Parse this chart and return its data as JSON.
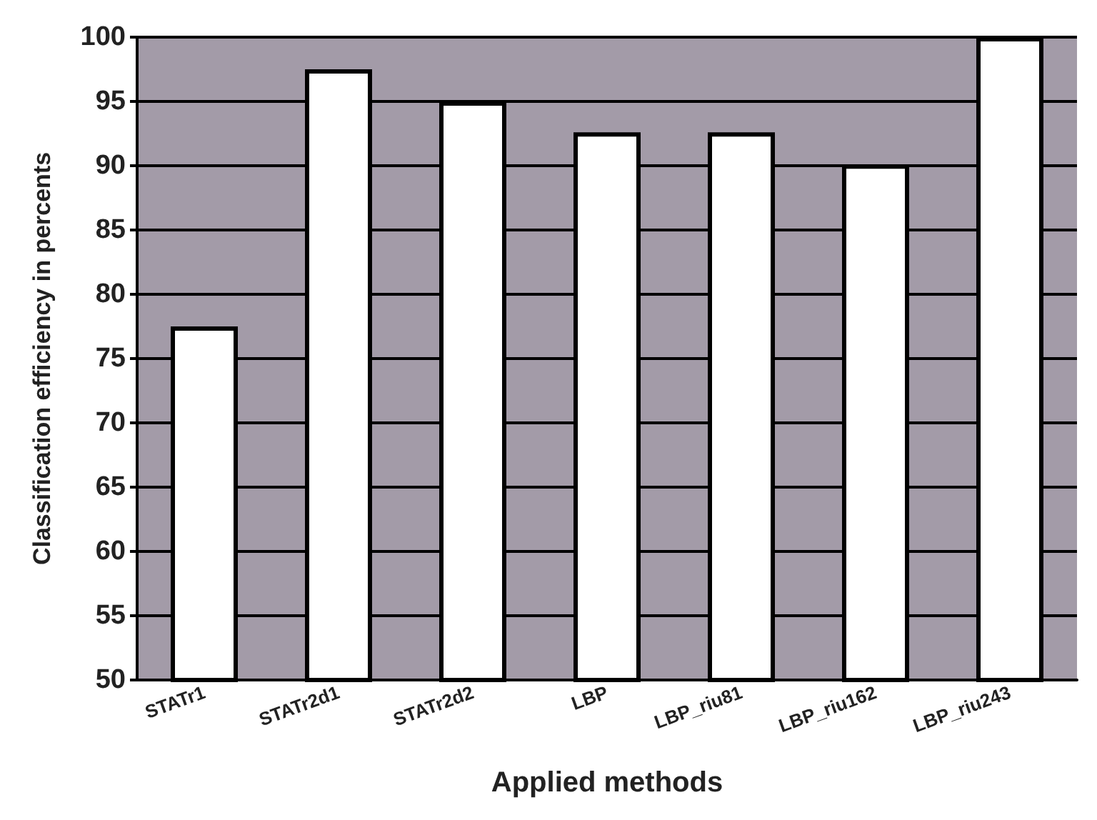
{
  "chart_data": {
    "type": "bar",
    "xlabel": "Applied methods",
    "ylabel": "Classification efficiency in percents",
    "categories": [
      "STATr1",
      "STATr2d1",
      "STATr2d2",
      "LBP",
      "LBP_riu81",
      "LBP_riu162",
      "LBP_riu243"
    ],
    "values": [
      77.5,
      97.5,
      95,
      92.6,
      92.6,
      90.1,
      100
    ],
    "colors": [
      "#ffffff",
      "#ffffff",
      "#ffffff",
      "#ffffff",
      "#ffffff",
      "#ffffff",
      "#ffffff"
    ],
    "ylim": [
      50,
      100
    ],
    "yticks": [
      50,
      55,
      60,
      65,
      70,
      75,
      80,
      85,
      90,
      95,
      100
    ],
    "grid": "y"
  }
}
